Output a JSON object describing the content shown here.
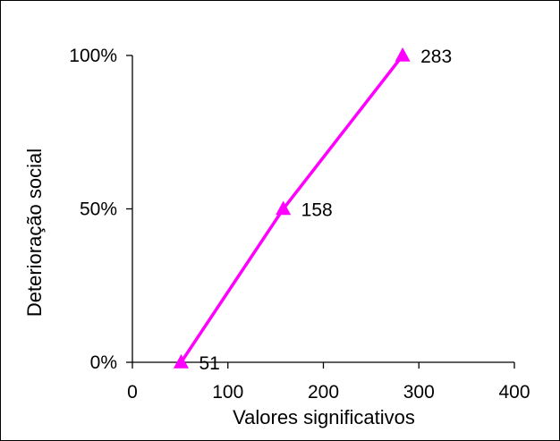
{
  "chart_data": {
    "type": "line",
    "title": "",
    "xlabel": "Valores significativos",
    "ylabel": "Deterioração social",
    "xlim": [
      0,
      400
    ],
    "ylim": [
      0,
      100
    ],
    "x_ticks": [
      0,
      100,
      200,
      300,
      400
    ],
    "x_tick_labels": [
      "0",
      "100",
      "200",
      "300",
      "400"
    ],
    "y_ticks": [
      0,
      50,
      100
    ],
    "y_tick_labels": [
      "0%",
      "50%",
      "100%"
    ],
    "grid": false,
    "legend": "none",
    "series": [
      {
        "points": [
          {
            "x": 51,
            "y": 0,
            "label": "51"
          },
          {
            "x": 158,
            "y": 50,
            "label": "158"
          },
          {
            "x": 283,
            "y": 100,
            "label": "283"
          }
        ],
        "color": "#ff00ff",
        "marker": "triangle"
      }
    ]
  }
}
